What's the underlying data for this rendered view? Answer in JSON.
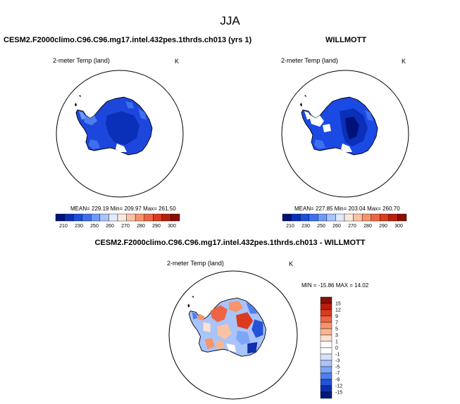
{
  "title": "JJA",
  "panels": {
    "model": {
      "title": "CESM2.F2000climo.C96.C96.mg17.intel.432pes.1thrds.ch013 (yrs 1)",
      "variable": "2-meter Temp (land)",
      "units": "K",
      "stats": "MEAN= 229.19  Min= 209.97  Max= 261.50"
    },
    "obs": {
      "title": "WILLMOTT",
      "variable": "2-meter Temp (land)",
      "units": "K",
      "stats": "MEAN= 227.85  Min= 203.04  Max= 260.70"
    },
    "diff": {
      "title": "CESM2.F2000climo.C96.C96.mg17.intel.432pes.1thrds.ch013 - WILLMOTT",
      "variable": "2-meter Temp (land)",
      "units": "K",
      "stats": "MIN = -15.86 MAX = 14.02"
    }
  },
  "colorbars": {
    "absolute": {
      "labels": [
        "210",
        "230",
        "250",
        "260",
        "270",
        "280",
        "290",
        "300"
      ],
      "colors": [
        "#00127a",
        "#0a2fb8",
        "#1a4fdd",
        "#3d6ff0",
        "#6f99f7",
        "#a8c4fb",
        "#e0ebfd",
        "#fde8dc",
        "#fbc3a6",
        "#f7946b",
        "#ef6444",
        "#dc3a1e",
        "#b81e0c",
        "#8a0e04"
      ]
    },
    "difference": {
      "labels": [
        "15",
        "12",
        "9",
        "7",
        "5",
        "3",
        "1",
        "0",
        "-1",
        "-3",
        "-5",
        "-7",
        "-9",
        "-12",
        "-15"
      ],
      "colors": [
        "#8a0e04",
        "#b81e0c",
        "#dc3a1e",
        "#ef6444",
        "#f7946b",
        "#fbb690",
        "#fde0cf",
        "#ffffff",
        "#ffffff",
        "#d6e2fa",
        "#a8c4fb",
        "#7ea6f6",
        "#4f7ef0",
        "#2452d8",
        "#0d2fb0",
        "#001a7a"
      ]
    }
  },
  "colors": {
    "land_model": "#1d46dc",
    "land_obs": "#1a49e4",
    "coast": "#000000"
  }
}
